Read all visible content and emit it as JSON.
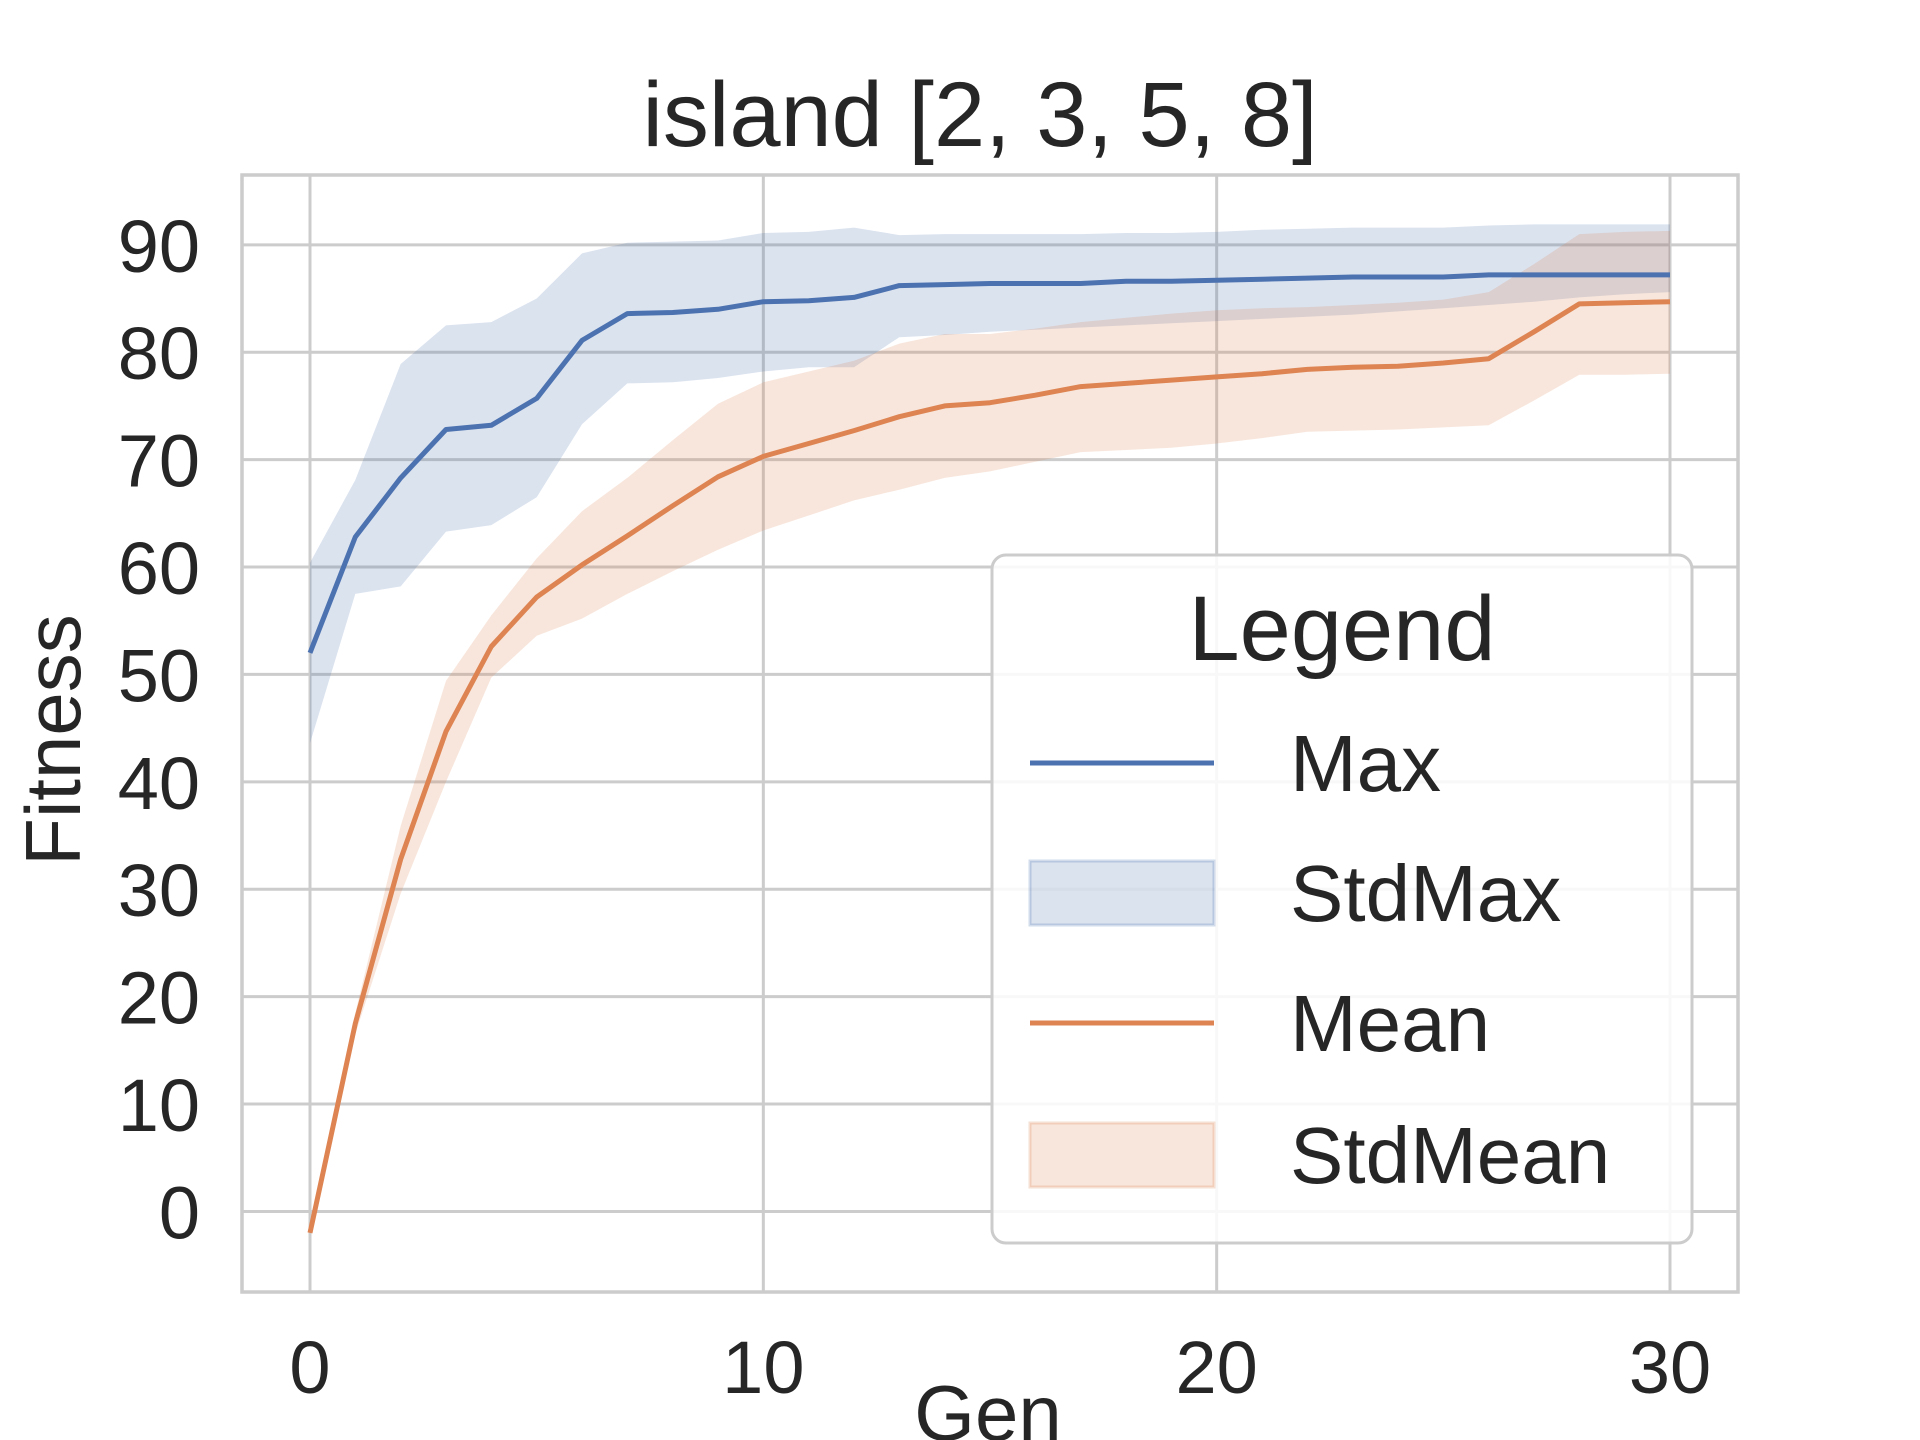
{
  "chart_data": {
    "type": "line",
    "title": "island [2, 3, 5, 8]",
    "xlabel": "Gen",
    "ylabel": "Fitness",
    "xlim": [
      -1.5,
      31.5
    ],
    "ylim": [
      -7.5,
      96.5
    ],
    "xticks": [
      0,
      10,
      20,
      30
    ],
    "yticks": [
      0,
      10,
      20,
      30,
      40,
      50,
      60,
      70,
      80,
      90
    ],
    "grid": true,
    "legend": {
      "title": "Legend",
      "placement": "lower right"
    },
    "colors": {
      "max": "#4c72b0",
      "mean": "#dd8452",
      "grid": "#cccccc",
      "spine": "#cccccc",
      "text": "#262626"
    },
    "x": [
      0,
      1,
      2,
      3,
      4,
      5,
      6,
      7,
      8,
      9,
      10,
      11,
      12,
      13,
      14,
      15,
      16,
      17,
      18,
      19,
      20,
      21,
      22,
      23,
      24,
      25,
      26,
      27,
      28,
      29,
      30
    ],
    "series": [
      {
        "name": "Max",
        "kind": "line",
        "color": "#4c72b0",
        "values": [
          52,
          62.8,
          68.3,
          72.8,
          73.2,
          75.7,
          81.1,
          83.6,
          83.7,
          84.0,
          84.7,
          84.8,
          85.1,
          86.2,
          86.3,
          86.4,
          86.4,
          86.4,
          86.6,
          86.6,
          86.7,
          86.8,
          86.9,
          87.0,
          87.0,
          87.0,
          87.2,
          87.2,
          87.2,
          87.2,
          87.2
        ]
      },
      {
        "name": "StdMax",
        "kind": "band",
        "color": "#4c72b0",
        "lower": [
          43.6,
          57.5,
          58.2,
          63.3,
          63.9,
          66.5,
          73.3,
          77.1,
          77.2,
          77.6,
          78.2,
          78.6,
          78.6,
          81.4,
          81.6,
          81.9,
          82.1,
          82.3,
          82.5,
          82.7,
          82.9,
          83.1,
          83.3,
          83.5,
          83.8,
          84.1,
          84.4,
          84.7,
          85.1,
          85.4,
          85.6
        ],
        "upper": [
          60.4,
          68.1,
          78.9,
          82.5,
          82.8,
          85.0,
          89.2,
          90.2,
          90.3,
          90.4,
          91.1,
          91.2,
          91.6,
          90.9,
          91.0,
          91.0,
          91.0,
          91.0,
          91.1,
          91.1,
          91.2,
          91.4,
          91.5,
          91.6,
          91.6,
          91.6,
          91.8,
          91.9,
          91.9,
          91.9,
          91.9
        ]
      },
      {
        "name": "Mean",
        "kind": "line",
        "color": "#dd8452",
        "values": [
          -2,
          17.5,
          32.8,
          44.7,
          52.6,
          57.2,
          60.2,
          62.9,
          65.7,
          68.4,
          70.3,
          71.5,
          72.7,
          74.0,
          75.0,
          75.3,
          76.0,
          76.8,
          77.1,
          77.4,
          77.7,
          78.0,
          78.4,
          78.6,
          78.7,
          79.0,
          79.4,
          81.9,
          84.5,
          84.6,
          84.7
        ]
      },
      {
        "name": "StdMean",
        "kind": "band",
        "color": "#dd8452",
        "lower": [
          -2,
          16.5,
          29.6,
          40.0,
          49.7,
          53.6,
          55.2,
          57.5,
          59.6,
          61.6,
          63.4,
          64.8,
          66.2,
          67.2,
          68.3,
          68.9,
          69.8,
          70.7,
          70.9,
          71.1,
          71.5,
          72.0,
          72.6,
          72.7,
          72.8,
          73.0,
          73.2,
          75.5,
          77.9,
          77.9,
          78.0
        ],
        "upper": [
          -2,
          18.5,
          35.9,
          49.4,
          55.5,
          60.8,
          65.2,
          68.3,
          71.8,
          75.2,
          77.2,
          78.2,
          79.2,
          80.8,
          81.7,
          81.7,
          82.2,
          82.8,
          83.2,
          83.6,
          83.9,
          84.1,
          84.2,
          84.4,
          84.6,
          84.9,
          85.6,
          88.2,
          91.0,
          91.2,
          91.3
        ]
      }
    ]
  }
}
